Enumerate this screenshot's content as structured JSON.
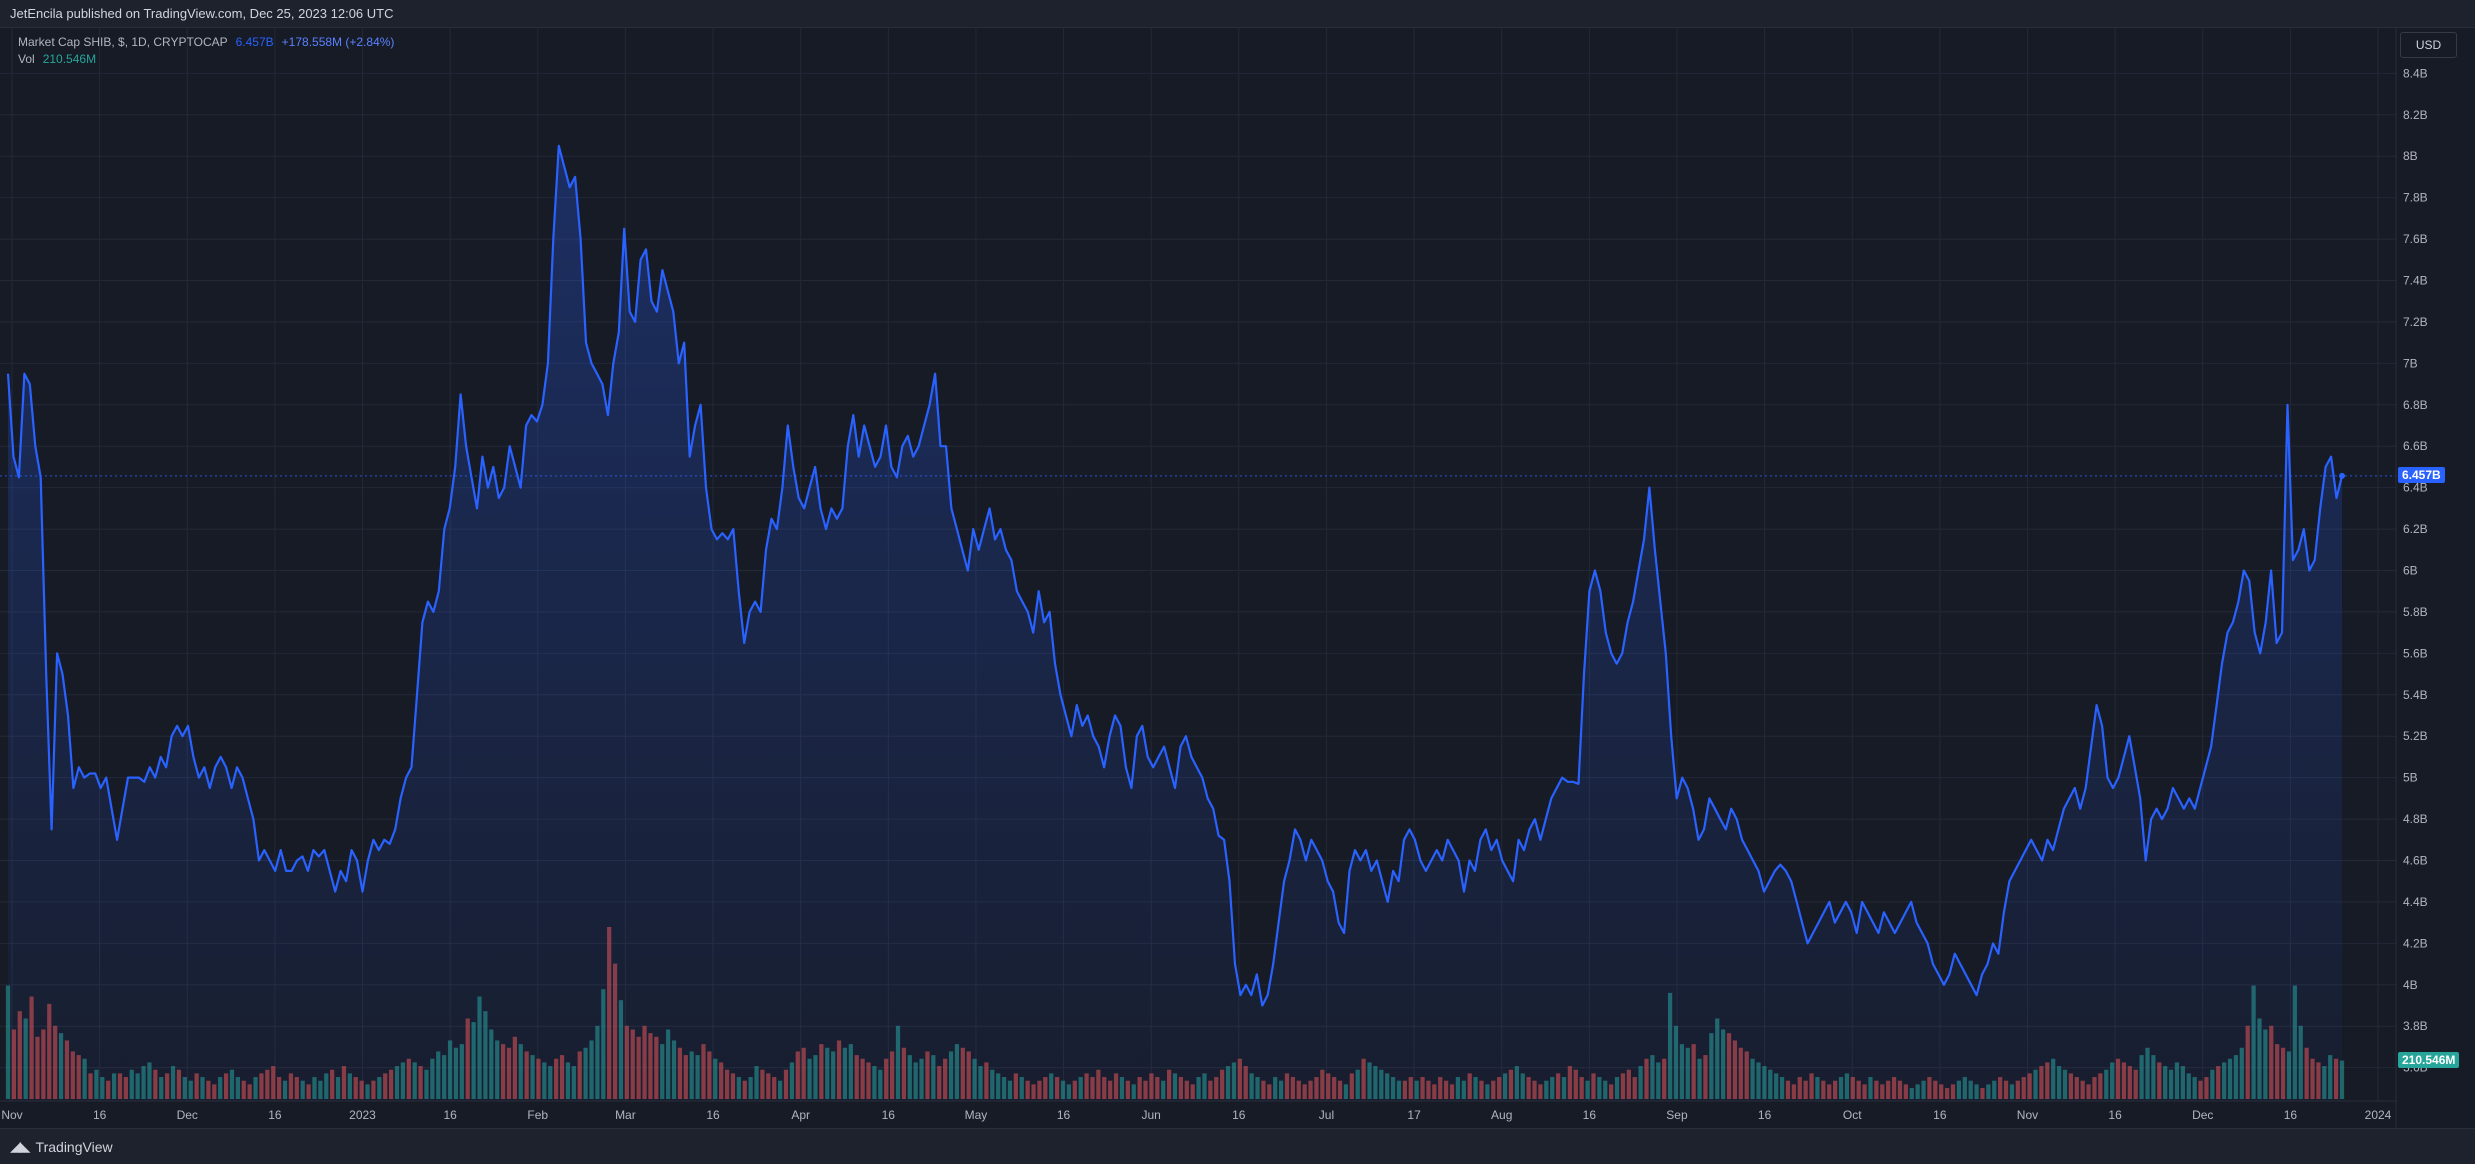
{
  "header": {
    "publish_text": "JetEncila published on TradingView.com, Dec 25, 2023 12:06 UTC"
  },
  "legend": {
    "symbol": "Market Cap SHIB, $, 1D, CRYPTOCAP",
    "value": "6.457B",
    "change": "+178.558M (+2.84%)",
    "vol_label": "Vol",
    "vol_value": "210.546M"
  },
  "currency_button": "USD",
  "last_price_tag": "6.457B",
  "last_volume_tag": "210.546M",
  "brand": {
    "name": "TradingView"
  },
  "colors": {
    "line": "#2962ff",
    "vol_up": "#26a69a",
    "vol_down": "#ef5350",
    "background": "#171b26",
    "grid": "#242936"
  },
  "chart_data": {
    "type": "area",
    "x_tick_labels": [
      "Nov",
      "16",
      "Dec",
      "16",
      "2023",
      "16",
      "Feb",
      "Mar",
      "16",
      "Apr",
      "16",
      "May",
      "16",
      "Jun",
      "16",
      "Jul",
      "17",
      "Aug",
      "16",
      "Sep",
      "16",
      "Oct",
      "16",
      "Nov",
      "16",
      "Dec",
      "16",
      "2024"
    ],
    "y_tick_labels": [
      "8.4B",
      "8.2B",
      "8B",
      "7.8B",
      "7.6B",
      "7.4B",
      "7.2B",
      "7B",
      "6.8B",
      "6.6B",
      "6.4B",
      "6.2B",
      "6B",
      "5.8B",
      "5.6B",
      "5.4B",
      "5.2B",
      "5B",
      "4.8B",
      "4.6B",
      "4.4B",
      "4.2B",
      "4B",
      "3.8B",
      "3.6B"
    ],
    "ylim": [
      3.55,
      8.45
    ],
    "y_unit": "B",
    "series": [
      {
        "values": [
          6.95,
          6.55,
          6.45,
          6.95,
          6.9,
          6.6,
          6.45,
          5.5,
          4.75,
          5.6,
          5.5,
          5.3,
          4.95,
          5.05,
          5.0,
          5.02,
          5.02,
          4.95,
          5.0,
          4.85,
          4.7,
          4.85,
          5.0,
          5.0,
          5.0,
          4.98,
          5.05,
          5.0,
          5.1,
          5.05,
          5.2,
          5.25,
          5.2,
          5.25,
          5.1,
          5.0,
          5.05,
          4.95,
          5.05,
          5.1,
          5.05,
          4.95,
          5.05,
          5.0,
          4.9,
          4.8,
          4.6,
          4.65,
          4.6,
          4.55,
          4.65,
          4.55,
          4.55,
          4.6,
          4.62,
          4.55,
          4.65,
          4.62,
          4.65,
          4.55,
          4.45,
          4.55,
          4.5,
          4.65,
          4.6,
          4.45,
          4.6,
          4.7,
          4.65,
          4.7,
          4.68,
          4.75,
          4.9,
          5.0,
          5.05,
          5.4,
          5.75,
          5.85,
          5.8,
          5.9,
          6.2,
          6.3,
          6.5,
          6.85,
          6.6,
          6.45,
          6.3,
          6.55,
          6.4,
          6.5,
          6.35,
          6.4,
          6.6,
          6.5,
          6.4,
          6.7,
          6.75,
          6.72,
          6.8,
          7.0,
          7.6,
          8.05,
          7.95,
          7.85,
          7.9,
          7.6,
          7.1,
          7.0,
          6.95,
          6.9,
          6.75,
          7.0,
          7.15,
          7.65,
          7.25,
          7.2,
          7.5,
          7.55,
          7.3,
          7.25,
          7.45,
          7.35,
          7.25,
          7.0,
          7.1,
          6.55,
          6.7,
          6.8,
          6.4,
          6.2,
          6.15,
          6.18,
          6.15,
          6.2,
          5.9,
          5.65,
          5.8,
          5.85,
          5.8,
          6.1,
          6.25,
          6.2,
          6.4,
          6.7,
          6.5,
          6.35,
          6.3,
          6.4,
          6.5,
          6.3,
          6.2,
          6.3,
          6.25,
          6.3,
          6.6,
          6.75,
          6.55,
          6.7,
          6.6,
          6.5,
          6.55,
          6.7,
          6.5,
          6.45,
          6.6,
          6.65,
          6.55,
          6.6,
          6.7,
          6.8,
          6.95,
          6.6,
          6.6,
          6.3,
          6.2,
          6.1,
          6.0,
          6.2,
          6.1,
          6.2,
          6.3,
          6.15,
          6.2,
          6.1,
          6.05,
          5.9,
          5.85,
          5.8,
          5.7,
          5.9,
          5.75,
          5.8,
          5.55,
          5.4,
          5.3,
          5.2,
          5.35,
          5.25,
          5.3,
          5.2,
          5.15,
          5.05,
          5.2,
          5.3,
          5.25,
          5.05,
          4.95,
          5.2,
          5.25,
          5.1,
          5.05,
          5.1,
          5.15,
          5.05,
          4.95,
          5.15,
          5.2,
          5.1,
          5.05,
          5.0,
          4.9,
          4.85,
          4.72,
          4.7,
          4.5,
          4.1,
          3.95,
          4.0,
          3.95,
          4.05,
          3.9,
          3.95,
          4.1,
          4.3,
          4.5,
          4.6,
          4.75,
          4.7,
          4.6,
          4.7,
          4.65,
          4.6,
          4.5,
          4.45,
          4.3,
          4.25,
          4.55,
          4.65,
          4.6,
          4.65,
          4.55,
          4.6,
          4.5,
          4.4,
          4.55,
          4.5,
          4.7,
          4.75,
          4.7,
          4.6,
          4.55,
          4.6,
          4.65,
          4.6,
          4.7,
          4.65,
          4.6,
          4.45,
          4.6,
          4.55,
          4.7,
          4.75,
          4.65,
          4.7,
          4.6,
          4.55,
          4.5,
          4.7,
          4.65,
          4.75,
          4.8,
          4.7,
          4.8,
          4.9,
          4.95,
          5.0,
          4.98,
          4.98,
          4.97,
          5.5,
          5.9,
          6.0,
          5.9,
          5.7,
          5.6,
          5.55,
          5.6,
          5.75,
          5.85,
          6.0,
          6.15,
          6.4,
          6.1,
          5.85,
          5.6,
          5.2,
          4.9,
          5.0,
          4.95,
          4.85,
          4.7,
          4.75,
          4.9,
          4.85,
          4.8,
          4.75,
          4.85,
          4.8,
          4.7,
          4.65,
          4.6,
          4.55,
          4.45,
          4.5,
          4.55,
          4.58,
          4.55,
          4.5,
          4.4,
          4.3,
          4.2,
          4.25,
          4.3,
          4.35,
          4.4,
          4.3,
          4.35,
          4.4,
          4.35,
          4.25,
          4.4,
          4.35,
          4.3,
          4.25,
          4.35,
          4.3,
          4.25,
          4.3,
          4.35,
          4.4,
          4.3,
          4.25,
          4.2,
          4.1,
          4.05,
          4.0,
          4.05,
          4.15,
          4.1,
          4.05,
          4.0,
          3.95,
          4.05,
          4.1,
          4.2,
          4.15,
          4.35,
          4.5,
          4.55,
          4.6,
          4.65,
          4.7,
          4.65,
          4.6,
          4.7,
          4.65,
          4.75,
          4.85,
          4.9,
          4.95,
          4.85,
          4.95,
          5.15,
          5.35,
          5.25,
          5.0,
          4.95,
          5.0,
          5.1,
          5.2,
          5.05,
          4.9,
          4.6,
          4.8,
          4.85,
          4.8,
          4.85,
          4.95,
          4.9,
          4.85,
          4.9,
          4.85,
          4.95,
          5.05,
          5.15,
          5.35,
          5.55,
          5.7,
          5.75,
          5.85,
          6.0,
          5.95,
          5.7,
          5.6,
          5.75,
          6.0,
          5.65,
          5.7,
          6.8,
          6.05,
          6.1,
          6.2,
          6.0,
          6.05,
          6.3,
          6.5,
          6.55,
          6.35,
          6.457
        ]
      },
      {
        "name": "Vol",
        "values": [
          62,
          38,
          48,
          44,
          56,
          34,
          38,
          52,
          40,
          36,
          32,
          26,
          24,
          22,
          14,
          16,
          12,
          10,
          14,
          14,
          12,
          16,
          14,
          18,
          20,
          16,
          12,
          14,
          18,
          16,
          12,
          10,
          14,
          12,
          10,
          8,
          12,
          14,
          16,
          12,
          10,
          8,
          12,
          14,
          16,
          18,
          12,
          10,
          14,
          12,
          10,
          8,
          12,
          10,
          14,
          16,
          12,
          18,
          14,
          12,
          10,
          8,
          10,
          12,
          14,
          16,
          18,
          20,
          22,
          20,
          18,
          16,
          22,
          26,
          24,
          32,
          28,
          30,
          44,
          42,
          56,
          48,
          38,
          32,
          30,
          28,
          34,
          30,
          26,
          24,
          22,
          20,
          18,
          22,
          24,
          20,
          18,
          26,
          28,
          32,
          40,
          60,
          94,
          74,
          54,
          40,
          38,
          34,
          40,
          36,
          34,
          30,
          38,
          32,
          28,
          24,
          26,
          24,
          30,
          26,
          22,
          20,
          16,
          14,
          12,
          10,
          12,
          18,
          16,
          14,
          12,
          10,
          16,
          20,
          26,
          28,
          22,
          24,
          30,
          28,
          26,
          32,
          28,
          30,
          24,
          22,
          20,
          18,
          16,
          22,
          26,
          40,
          28,
          24,
          20,
          22,
          26,
          24,
          18,
          22,
          26,
          30,
          28,
          26,
          22,
          18,
          20,
          16,
          14,
          12,
          10,
          14,
          12,
          10,
          8,
          10,
          12,
          14,
          12,
          10,
          8,
          10,
          12,
          14,
          12,
          16,
          12,
          10,
          14,
          12,
          10,
          8,
          12,
          10,
          14,
          12,
          10,
          16,
          14,
          12,
          10,
          8,
          12,
          14,
          10,
          12,
          16,
          18,
          20,
          22,
          18,
          14,
          12,
          10,
          8,
          12,
          10,
          14,
          12,
          10,
          8,
          10,
          12,
          16,
          14,
          12,
          10,
          8,
          14,
          16,
          22,
          20,
          18,
          16,
          14,
          12,
          10,
          10,
          12,
          10,
          12,
          10,
          8,
          12,
          10,
          8,
          12,
          10,
          14,
          12,
          10,
          8,
          10,
          12,
          14,
          16,
          18,
          14,
          12,
          10,
          8,
          10,
          12,
          14,
          12,
          18,
          16,
          12,
          10,
          14,
          12,
          10,
          8,
          12,
          14,
          16,
          12,
          18,
          22,
          24,
          20,
          22,
          58,
          40,
          30,
          28,
          30,
          22,
          24,
          36,
          44,
          38,
          36,
          32,
          28,
          26,
          22,
          20,
          18,
          16,
          14,
          12,
          10,
          8,
          12,
          10,
          14,
          12,
          10,
          8,
          10,
          12,
          14,
          12,
          10,
          8,
          12,
          10,
          8,
          10,
          12,
          10,
          8,
          6,
          8,
          10,
          12,
          10,
          8,
          6,
          8,
          10,
          12,
          10,
          8,
          6,
          8,
          10,
          12,
          10,
          8,
          10,
          12,
          14,
          16,
          18,
          20,
          22,
          18,
          16,
          14,
          12,
          10,
          8,
          12,
          14,
          16,
          20,
          22,
          20,
          18,
          16,
          24,
          28,
          24,
          20,
          18,
          16,
          20,
          18,
          14,
          12,
          10,
          12,
          16,
          18,
          20,
          22,
          24,
          28,
          40,
          62,
          44,
          38,
          40,
          30,
          28,
          26,
          62,
          40,
          28,
          22,
          20,
          18,
          24,
          22,
          21
        ]
      }
    ]
  }
}
